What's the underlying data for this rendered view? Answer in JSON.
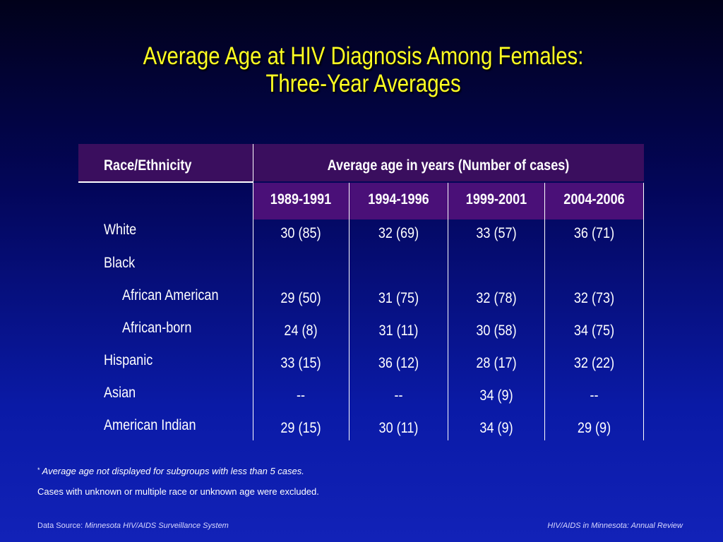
{
  "title": {
    "line1": "Average Age at HIV Diagnosis Among Females:",
    "line2": "Three-Year Averages"
  },
  "table": {
    "col_header_left": "Race/Ethnicity",
    "col_header_right": "Average age in years (Number of cases)",
    "years": [
      "1989-1991",
      "1994-1996",
      "1999-2001",
      "2004-2006"
    ],
    "rows": [
      {
        "label": "White",
        "values": [
          "30 (85)",
          "32 (69)",
          "33 (57)",
          "36 (71)"
        ]
      },
      {
        "label": "Black",
        "values": [
          "",
          "",
          "",
          ""
        ]
      },
      {
        "label": "African American",
        "values": [
          "29 (50)",
          "31 (75)",
          "32 (78)",
          "32 (73)"
        ]
      },
      {
        "label": "African-born",
        "values": [
          "24 (8)",
          "31 (11)",
          "30 (58)",
          "34 (75)"
        ]
      },
      {
        "label": "Hispanic",
        "values": [
          "33 (15)",
          "36 (12)",
          "28 (17)",
          "32 (22)"
        ]
      },
      {
        "label": "Asian",
        "values": [
          "--",
          "--",
          "34 (9)",
          "--"
        ]
      },
      {
        "label": "American Indian",
        "values": [
          "29 (15)",
          "30 (11)",
          "34 (9)",
          "29 (9)"
        ]
      }
    ]
  },
  "footnotes": {
    "note1_mark": "*",
    "note1_text": " Average age not displayed for subgroups with less than 5 cases.",
    "note2_text": "Cases with unknown or multiple race or unknown age were excluded."
  },
  "footer": {
    "source_label": "Data Source: ",
    "source_name": "Minnesota HIV/AIDS Surveillance System",
    "report_name": "HIV/AIDS in Minnesota: Annual Review"
  }
}
